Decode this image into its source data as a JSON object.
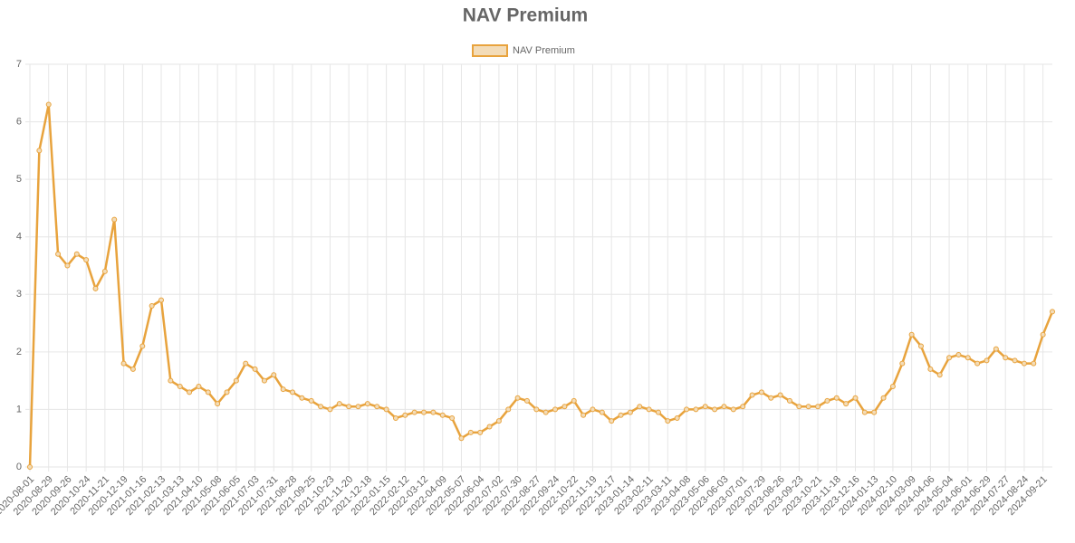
{
  "chart_data": {
    "type": "line",
    "title": "NAV Premium",
    "categories": [
      "2020-08-01",
      null,
      "2020-08-29",
      null,
      "2020-09-26",
      null,
      "2020-10-24",
      null,
      "2020-11-21",
      null,
      "2020-12-19",
      null,
      "2021-01-16",
      null,
      "2021-02-13",
      null,
      "2021-03-13",
      null,
      "2021-04-10",
      null,
      "2021-05-08",
      null,
      "2021-06-05",
      null,
      "2021-07-03",
      null,
      "2021-07-31",
      null,
      "2021-08-28",
      null,
      "2021-09-25",
      null,
      "2021-10-23",
      null,
      "2021-11-20",
      null,
      "2021-12-18",
      null,
      "2022-01-15",
      null,
      "2022-02-12",
      null,
      "2022-03-12",
      null,
      "2022-04-09",
      null,
      "2022-05-07",
      null,
      "2022-06-04",
      null,
      "2022-07-02",
      null,
      "2022-07-30",
      null,
      "2022-08-27",
      null,
      "2022-09-24",
      null,
      "2022-10-22",
      null,
      "2022-11-19",
      null,
      "2022-12-17",
      null,
      "2023-01-14",
      null,
      "2023-02-11",
      null,
      "2023-03-11",
      null,
      "2023-04-08",
      null,
      "2023-05-06",
      null,
      "2023-06-03",
      null,
      "2023-07-01",
      null,
      "2023-07-29",
      null,
      "2023-08-26",
      null,
      "2023-09-23",
      null,
      "2023-10-21",
      null,
      "2023-11-18",
      null,
      "2023-12-16",
      null,
      "2024-01-13",
      null,
      "2024-02-10",
      null,
      "2024-03-09",
      null,
      "2024-04-06",
      null,
      "2024-05-04",
      null,
      "2024-06-01",
      null,
      "2024-06-29",
      null,
      "2024-07-27",
      null,
      "2024-08-24",
      null,
      "2024-09-21",
      null
    ],
    "series": [
      {
        "name": "NAV Premium",
        "color": "#e8a33d",
        "values": [
          0,
          5.5,
          6.3,
          3.7,
          3.5,
          3.7,
          3.6,
          3.1,
          3.4,
          4.3,
          1.8,
          1.7,
          2.1,
          2.8,
          2.9,
          1.5,
          1.4,
          1.3,
          1.4,
          1.3,
          1.1,
          1.3,
          1.5,
          1.8,
          1.7,
          1.5,
          1.6,
          1.35,
          1.3,
          1.2,
          1.15,
          1.05,
          1.0,
          1.1,
          1.05,
          1.05,
          1.1,
          1.05,
          1.0,
          0.85,
          0.9,
          0.95,
          0.95,
          0.95,
          0.9,
          0.85,
          0.5,
          0.6,
          0.6,
          0.7,
          0.8,
          1.0,
          1.2,
          1.15,
          1.0,
          0.95,
          1.0,
          1.05,
          1.15,
          0.9,
          1.0,
          0.95,
          0.8,
          0.9,
          0.95,
          1.05,
          1.0,
          0.95,
          0.8,
          0.85,
          1.0,
          1.0,
          1.05,
          1.0,
          1.05,
          1.0,
          1.05,
          1.25,
          1.3,
          1.2,
          1.25,
          1.15,
          1.05,
          1.05,
          1.05,
          1.15,
          1.2,
          1.1,
          1.2,
          0.95,
          0.95,
          1.2,
          1.4,
          1.8,
          2.3,
          2.1,
          1.7,
          1.6,
          1.9,
          1.95,
          1.9,
          1.8,
          1.85,
          2.05,
          1.9,
          1.85,
          1.8,
          1.8,
          2.3,
          2.7
        ]
      }
    ],
    "ylim": [
      0,
      7
    ],
    "yticks": [
      0,
      1,
      2,
      3,
      4,
      5,
      6,
      7
    ],
    "grid": true,
    "legend": "top"
  }
}
